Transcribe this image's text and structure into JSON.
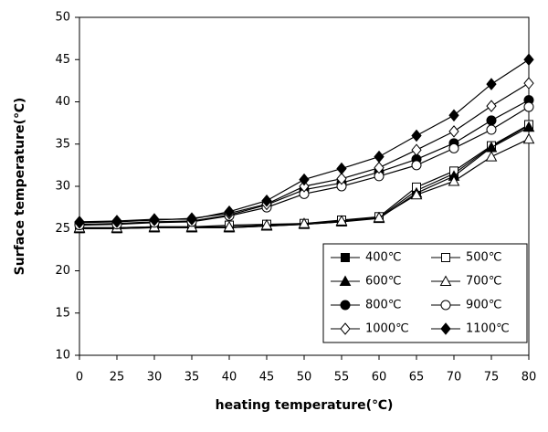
{
  "chart_data": {
    "type": "line",
    "xlabel": "heating temperature(℃)",
    "ylabel": "Surface temperature(℃)",
    "categories": [
      "0",
      "25",
      "30",
      "35",
      "40",
      "45",
      "50",
      "55",
      "60",
      "65",
      "70",
      "75",
      "80"
    ],
    "ylim": [
      10,
      50
    ],
    "yticks": [
      10,
      15,
      20,
      25,
      30,
      35,
      40,
      45,
      50
    ],
    "legend": "lower right",
    "series": [
      {
        "name": "400℃",
        "color": "#000000",
        "marker": "square",
        "filled": true,
        "values": [
          25.0,
          25.0,
          25.1,
          25.1,
          25.1,
          25.3,
          25.5,
          25.8,
          26.3,
          29.5,
          31.5,
          34.7,
          37.2
        ]
      },
      {
        "name": "500℃",
        "color": "#000000",
        "marker": "square",
        "filled": false,
        "values": [
          25.1,
          25.1,
          25.2,
          25.2,
          25.4,
          25.5,
          25.6,
          26.0,
          26.4,
          29.9,
          31.8,
          34.8,
          37.3
        ]
      },
      {
        "name": "600℃",
        "color": "#000000",
        "marker": "triangle",
        "filled": true,
        "values": [
          25.0,
          25.0,
          25.1,
          25.1,
          25.1,
          25.3,
          25.5,
          25.8,
          26.2,
          29.2,
          31.2,
          34.6,
          37.0
        ]
      },
      {
        "name": "700℃",
        "color": "#000000",
        "marker": "triangle",
        "filled": false,
        "values": [
          25.1,
          25.1,
          25.2,
          25.2,
          25.2,
          25.4,
          25.6,
          25.9,
          26.3,
          29.0,
          30.6,
          33.5,
          35.6
        ]
      },
      {
        "name": "800℃",
        "color": "#000000",
        "marker": "circle",
        "filled": true,
        "values": [
          25.5,
          25.6,
          25.8,
          25.9,
          26.6,
          27.8,
          29.6,
          30.4,
          31.7,
          33.2,
          35.1,
          37.8,
          40.2
        ]
      },
      {
        "name": "900℃",
        "color": "#000000",
        "marker": "circle",
        "filled": false,
        "values": [
          25.4,
          25.5,
          25.7,
          25.8,
          26.5,
          27.5,
          29.1,
          30.0,
          31.2,
          32.5,
          34.5,
          36.7,
          39.4
        ]
      },
      {
        "name": "1000℃",
        "color": "#000000",
        "marker": "diamond",
        "filled": false,
        "values": [
          25.7,
          25.8,
          26.0,
          26.2,
          26.8,
          27.9,
          30.0,
          30.9,
          32.2,
          34.3,
          36.5,
          39.5,
          42.2
        ]
      },
      {
        "name": "1100℃",
        "color": "#000000",
        "marker": "diamond",
        "filled": true,
        "values": [
          25.8,
          25.9,
          26.1,
          26.1,
          27.0,
          28.3,
          30.8,
          32.1,
          33.5,
          36.0,
          38.4,
          42.1,
          45.0
        ]
      }
    ]
  }
}
